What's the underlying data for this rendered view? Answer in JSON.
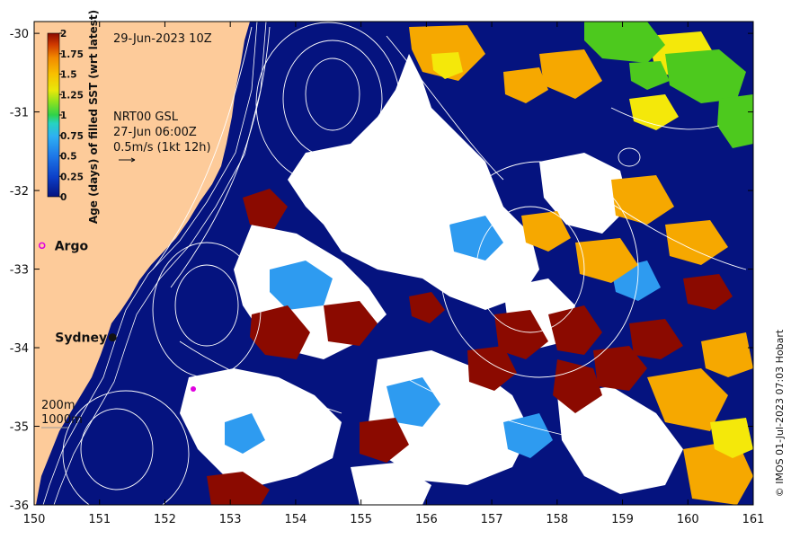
{
  "map": {
    "date_label": "29-Jun-2023 10Z",
    "current_source": "NRT00 GSL",
    "current_time": "27-Jun 06:00Z",
    "vector_scale": "0.5m/s (1kt 12h)",
    "copyright": "© IMOS 01-Jul-2023 07:03 Hobart",
    "lon_range": [
      150,
      161
    ],
    "lat_range": [
      -36,
      -29.85
    ],
    "lon_ticks": [
      "150",
      "151",
      "152",
      "153",
      "154",
      "155",
      "156",
      "157",
      "158",
      "159",
      "160",
      "161"
    ],
    "lat_ticks": [
      "-30",
      "-31",
      "-32",
      "-33",
      "-34",
      "-35",
      "-36"
    ],
    "places": [
      {
        "name": "Argo",
        "lon": 150.12,
        "lat": -32.7
      },
      {
        "name": "Sydney",
        "lon": 151.2,
        "lat": -33.87
      }
    ],
    "depth_labels": [
      "200m",
      "1000m"
    ],
    "colorbar": {
      "title": "Age (days) of filled SST (wrt latest)",
      "tick_labels": [
        "2",
        "1.75",
        "1.5",
        "1.25",
        "1",
        "0.75",
        "0.5",
        "0.25",
        "0"
      ],
      "range": [
        0,
        2
      ]
    },
    "colors": {
      "land": "#FDCB9A",
      "ocean": "#05137F",
      "cloud": "#FFFFFF",
      "age_old": "#8B0A00",
      "orange": "#F6A800",
      "yellow": "#F4E80A",
      "green": "#4DC91E",
      "light_blue": "#2E9BF0",
      "argo_marker": "#E000E0",
      "contour": "#FFFFFF"
    }
  }
}
